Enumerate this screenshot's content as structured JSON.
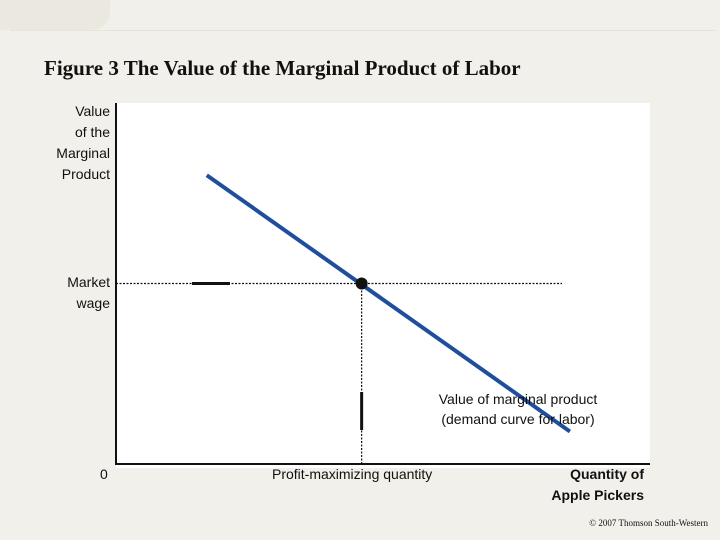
{
  "title": "Figure 3 The Value of the Marginal Product of Labor",
  "copyright": "© 2007 Thomson South-Western",
  "chart_data": {
    "type": "line",
    "title": "Figure 3 The Value of the Marginal Product of Labor",
    "ylabel": "Value\nof the\nMarginal\nProduct",
    "xlabel": "Quantity of\nApple Pickers",
    "origin_label": "0",
    "series": [
      {
        "name": "Value of marginal product\n(demand curve for labor)",
        "color": "#1f4e9c",
        "x": [
          0.17,
          0.85
        ],
        "y": [
          0.8,
          0.09
        ]
      }
    ],
    "equilibrium": {
      "x": 0.46,
      "y": 0.5
    },
    "annotations": {
      "wage_label": "Market\nwage",
      "quantity_label": "Profit-maximizing quantity"
    },
    "xlim": [
      0,
      1
    ],
    "ylim": [
      0,
      1
    ],
    "grid": false
  }
}
